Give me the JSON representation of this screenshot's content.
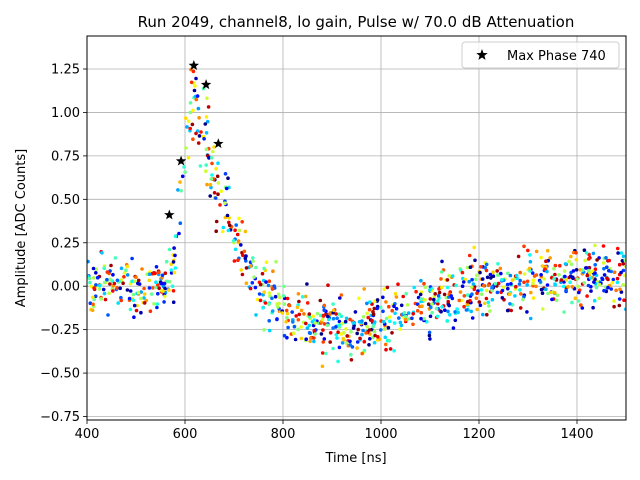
{
  "chart_data": {
    "type": "scatter",
    "title": "Run 2049, channel8, lo gain, Pulse w/ 70.0 dB Attenuation",
    "xlabel": "Time [ns]",
    "ylabel": "Amplitude [ADC Counts]",
    "xlim": [
      400,
      1500
    ],
    "ylim": [
      -0.77,
      1.44
    ],
    "xticks": [
      400,
      600,
      800,
      1000,
      1200,
      1400
    ],
    "yticks": [
      -0.75,
      -0.5,
      -0.25,
      0.0,
      0.25,
      0.5,
      0.75,
      1.0,
      1.25
    ],
    "xtick_labels": [
      "400",
      "600",
      "800",
      "1000",
      "1200",
      "1400"
    ],
    "ytick_labels": [
      "−0.75",
      "−0.50",
      "−0.25",
      "0.00",
      "0.25",
      "0.50",
      "0.75",
      "1.00",
      "1.25"
    ],
    "grid": true,
    "legend_position": "top-right",
    "colormap": "jet",
    "series": [
      {
        "name": "Max Phase 740",
        "marker": "star",
        "color": "#000000",
        "x": [
          568,
          592,
          618,
          643,
          668
        ],
        "y": [
          0.41,
          0.72,
          1.27,
          1.16,
          0.82
        ]
      }
    ],
    "noise_baseline": {
      "description_points": [
        [
          400,
          0.0
        ],
        [
          560,
          0.0
        ],
        [
          575,
          0.05
        ],
        [
          590,
          0.45
        ],
        [
          600,
          0.8
        ],
        [
          615,
          1.05
        ],
        [
          635,
          0.95
        ],
        [
          660,
          0.65
        ],
        [
          690,
          0.4
        ],
        [
          720,
          0.15
        ],
        [
          760,
          -0.05
        ],
        [
          820,
          -0.15
        ],
        [
          880,
          -0.22
        ],
        [
          950,
          -0.24
        ],
        [
          1000,
          -0.2
        ],
        [
          1080,
          -0.12
        ],
        [
          1150,
          -0.05
        ],
        [
          1250,
          0.02
        ],
        [
          1350,
          0.05
        ],
        [
          1500,
          0.06
        ]
      ],
      "spread": 0.12,
      "count": 1100
    }
  }
}
